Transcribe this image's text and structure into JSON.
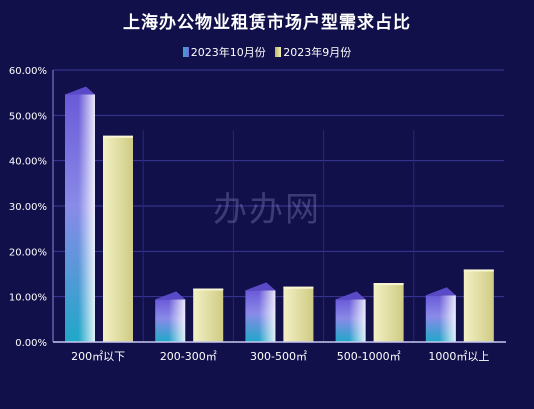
{
  "chart_data": {
    "type": "bar",
    "title": "上海办公物业租赁市场户型需求占比",
    "categories": [
      "200㎡以下",
      "200-300㎡",
      "300-500㎡",
      "500-1000㎡",
      "1000㎡以上"
    ],
    "series": [
      {
        "name": "2023年10月份",
        "values": [
          0.546,
          0.094,
          0.114,
          0.094,
          0.103
        ]
      },
      {
        "name": "2023年9月份",
        "values": [
          0.455,
          0.118,
          0.122,
          0.13,
          0.16
        ]
      }
    ],
    "ylim": [
      0,
      0.6
    ],
    "yticks": [
      "0.00%",
      "10.00%",
      "20.00%",
      "30.00%",
      "40.00%",
      "50.00%",
      "60.00%"
    ],
    "legend_position": "top-center",
    "grid": true
  },
  "watermark": "办办网",
  "colors": {
    "background": "#12104a",
    "grid": "#3a3a9a",
    "series0": "#7b68e0",
    "series1": "#e6e3a0"
  }
}
